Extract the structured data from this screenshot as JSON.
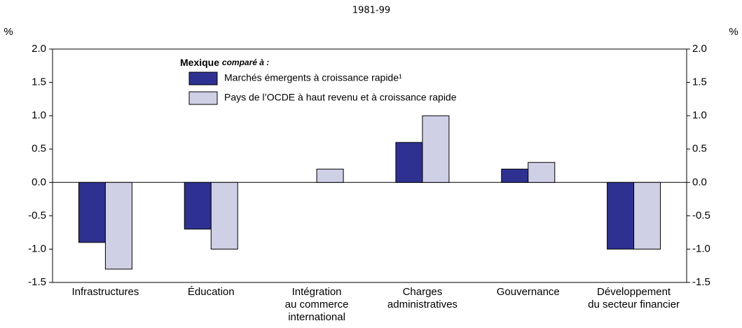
{
  "chart_data": {
    "type": "bar",
    "subtitle": "1981-99",
    "y_label": "%",
    "y2_label": "%",
    "legend_title": "Mexique",
    "legend_title_note": "comparé à :",
    "categories": [
      [
        "Infrastructures"
      ],
      [
        "Éducation"
      ],
      [
        "Intégration",
        "au commerce",
        "international"
      ],
      [
        "Charges",
        "administratives"
      ],
      [
        "Gouvernance"
      ],
      [
        "Développement",
        "du secteur financier"
      ]
    ],
    "series": [
      {
        "name": "Marchés émergents à croissance rapide¹",
        "color": "#2e3192",
        "values": [
          -0.9,
          -0.7,
          null,
          0.6,
          0.2,
          -1.0
        ]
      },
      {
        "name": "Pays de l’OCDE à haut revenu et à croissance rapide",
        "color": "#cfcfe6",
        "values": [
          -1.3,
          -1.0,
          0.2,
          1.0,
          0.3,
          -1.0
        ]
      }
    ],
    "ylim": [
      -1.5,
      2.0
    ],
    "yticks": [
      -1.5,
      {
        "value": -1,
        "label": "-1.0"
      },
      -0.5,
      {
        "value": 0,
        "label": "0.0"
      },
      0.5,
      {
        "value": 1,
        "label": "1.0"
      },
      1.5,
      {
        "value": 2,
        "label": "2.0"
      }
    ],
    "y2lim": [
      -1.5,
      2.0
    ],
    "y2ticks": [
      -1.5,
      {
        "value": -1,
        "label": "-1.0"
      },
      -0.5,
      {
        "value": 0,
        "label": "0.0"
      },
      0.5,
      {
        "value": 1,
        "label": "1.0"
      },
      1.5,
      {
        "value": 2,
        "label": "2.0"
      }
    ]
  }
}
